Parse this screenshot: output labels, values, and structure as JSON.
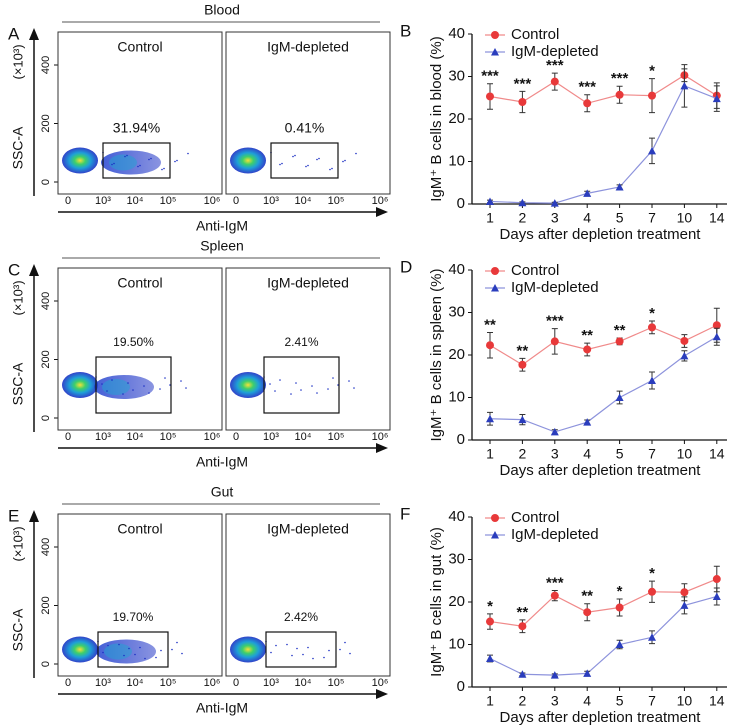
{
  "flow_panels": [
    {
      "letter": "A",
      "title": "Blood",
      "y_label": "SSC-A",
      "y_unit": "(×10³)",
      "yticks": [
        0,
        200,
        400
      ],
      "xticks": [
        "0",
        "10³",
        "10⁴",
        "10⁵",
        "10⁶"
      ],
      "x_label": "Anti-IgM",
      "plots": [
        {
          "label": "Control",
          "gate_percent": "31.94%"
        },
        {
          "label": "IgM-depleted",
          "gate_percent": "0.41%"
        }
      ]
    },
    {
      "letter": "C",
      "title": "Spleen",
      "y_label": "SSC-A",
      "y_unit": "(×10³)",
      "yticks": [
        0,
        200,
        400
      ],
      "xticks": [
        "0",
        "10³",
        "10⁴",
        "10⁵",
        "10⁶"
      ],
      "x_label": "Anti-IgM",
      "plots": [
        {
          "label": "Control",
          "gate_percent": "19.50%"
        },
        {
          "label": "IgM-depleted",
          "gate_percent": "2.41%"
        }
      ]
    },
    {
      "letter": "E",
      "title": "Gut",
      "y_label": "SSC-A",
      "y_unit": "(×10³)",
      "yticks": [
        0,
        200,
        400
      ],
      "xticks": [
        "0",
        "10³",
        "10⁴",
        "10⁵",
        "10⁶"
      ],
      "x_label": "Anti-IgM",
      "plots": [
        {
          "label": "Control",
          "gate_percent": "19.70%"
        },
        {
          "label": "IgM-depleted",
          "gate_percent": "2.42%"
        }
      ]
    }
  ],
  "chart_data": [
    {
      "type": "line",
      "panel_label": "B",
      "y_label": "IgM⁺ B cells in blood (%)",
      "x_label": "Days after depletion treatment",
      "categories": [
        "1",
        "2",
        "3",
        "4",
        "5",
        "7",
        "10",
        "14"
      ],
      "ylim": [
        0,
        40
      ],
      "yticks": [
        0,
        10,
        20,
        30,
        40
      ],
      "series": [
        {
          "name": "Control",
          "color": "#e8393a",
          "marker": "circle",
          "values": [
            25.3,
            24,
            28.8,
            23.7,
            25.7,
            25.5,
            30.3,
            25.5
          ],
          "errors": [
            3,
            2.5,
            2,
            2,
            2,
            4,
            1.5,
            3
          ]
        },
        {
          "name": "IgM-depleted",
          "color": "#2a3dbd",
          "marker": "triangle",
          "values": [
            0.6,
            0.3,
            0.2,
            2.5,
            4,
            12.5,
            27.8,
            24.8
          ],
          "errors": [
            0.3,
            0.2,
            0.2,
            0.5,
            0.5,
            3,
            5,
            3
          ]
        }
      ],
      "annotations": [
        "***",
        "***",
        "***",
        "***",
        "***",
        "*",
        null,
        null
      ]
    },
    {
      "type": "line",
      "panel_label": "D",
      "y_label": "IgM⁺ B cells in spleen (%)",
      "x_label": "Days after depletion treatment",
      "categories": [
        "1",
        "2",
        "3",
        "4",
        "5",
        "7",
        "10",
        "14"
      ],
      "ylim": [
        0,
        40
      ],
      "yticks": [
        0,
        10,
        20,
        30,
        40
      ],
      "series": [
        {
          "name": "Control",
          "color": "#e8393a",
          "marker": "circle",
          "values": [
            22.3,
            17.7,
            23.2,
            21.3,
            23.2,
            26.5,
            23.3,
            27
          ],
          "errors": [
            3,
            1.5,
            3,
            1.5,
            0.8,
            1.5,
            1.5,
            4
          ]
        },
        {
          "name": "IgM-depleted",
          "color": "#2a3dbd",
          "marker": "triangle",
          "values": [
            5,
            4.8,
            1.9,
            4.2,
            10,
            14,
            19.8,
            24.3
          ],
          "errors": [
            1.5,
            1.2,
            0.5,
            0.5,
            1.5,
            2,
            1.2,
            2
          ]
        }
      ],
      "annotations": [
        "**",
        "**",
        "***",
        "**",
        "**",
        "*",
        null,
        null
      ]
    },
    {
      "type": "line",
      "panel_label": "F",
      "y_label": "IgM⁺ B cells in gut (%)",
      "x_label": "Days after depletion treatment",
      "categories": [
        "1",
        "2",
        "3",
        "4",
        "5",
        "7",
        "10",
        "14"
      ],
      "ylim": [
        0,
        40
      ],
      "yticks": [
        0,
        10,
        20,
        30,
        40
      ],
      "series": [
        {
          "name": "Control",
          "color": "#e8393a",
          "marker": "circle",
          "values": [
            15.4,
            14.3,
            21.5,
            17.6,
            18.7,
            22.4,
            22.3,
            25.4
          ],
          "errors": [
            1.8,
            1.5,
            1.2,
            2,
            2,
            2.5,
            2,
            3
          ]
        },
        {
          "name": "IgM-depleted",
          "color": "#2a3dbd",
          "marker": "triangle",
          "values": [
            6.7,
            3,
            2.8,
            3.2,
            10,
            11.7,
            19.2,
            21.3
          ],
          "errors": [
            0.8,
            0.3,
            0.3,
            0.5,
            1,
            1.5,
            2,
            2
          ]
        }
      ],
      "annotations": [
        "*",
        "**",
        "***",
        "**",
        "*",
        "*",
        null,
        null
      ]
    }
  ]
}
